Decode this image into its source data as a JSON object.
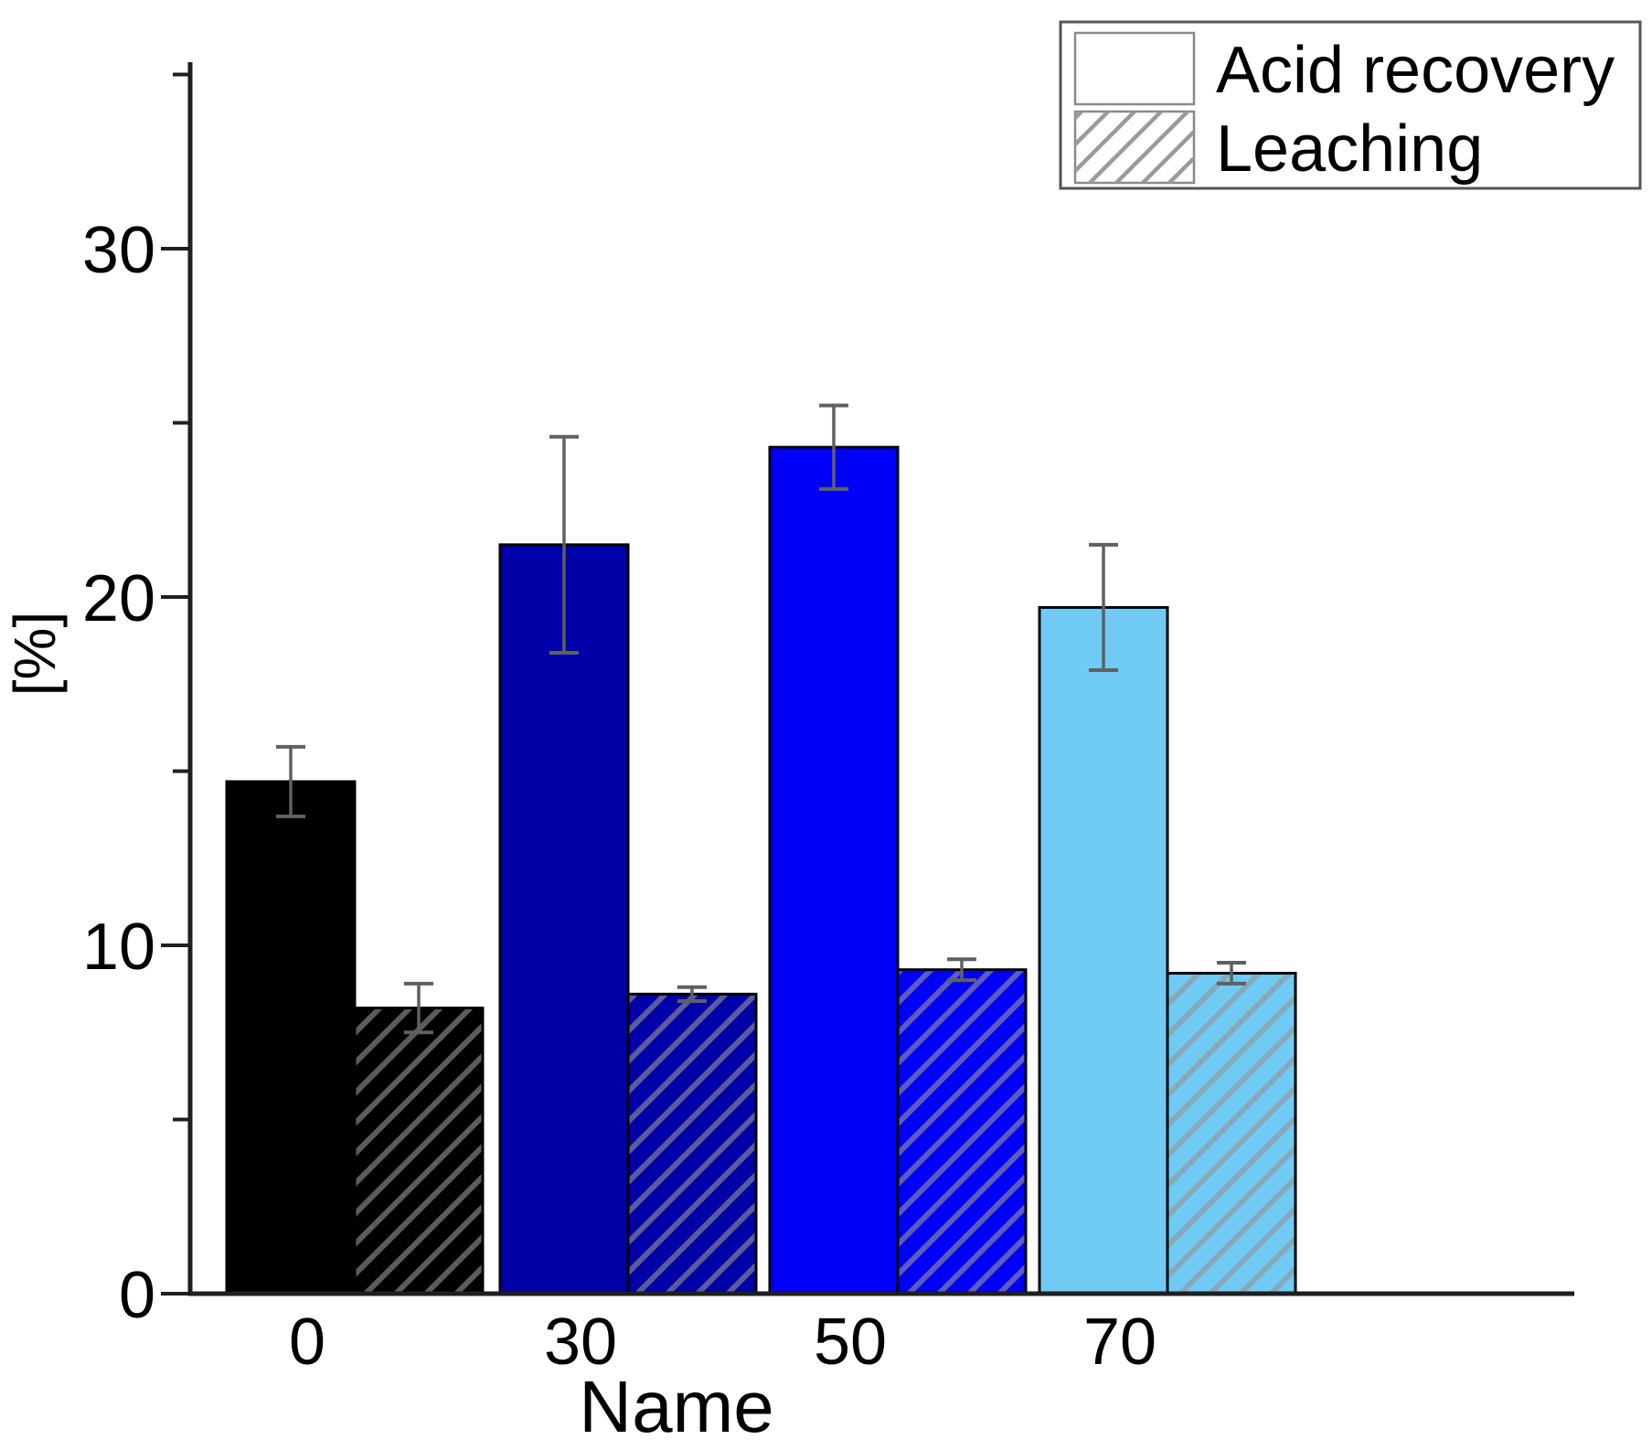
{
  "chart_data": {
    "type": "bar",
    "title": "",
    "xlabel": "Name",
    "ylabel": "[%]",
    "categories": [
      "0",
      "30",
      "50",
      "70"
    ],
    "series": [
      {
        "name": "Acid recovery",
        "style": "solid",
        "values": [
          14.7,
          21.5,
          24.3,
          19.7
        ],
        "errors": [
          1.0,
          3.1,
          1.2,
          1.8
        ]
      },
      {
        "name": "Leaching",
        "style": "hatched",
        "values": [
          8.2,
          8.6,
          9.3,
          9.2
        ],
        "errors": [
          0.7,
          0.2,
          0.3,
          0.3
        ]
      }
    ],
    "group_colors": [
      "#000000",
      "#0000A8",
      "#0000FA",
      "#70CBF4"
    ],
    "ylim": [
      0,
      35.3
    ],
    "yticks": [
      0,
      10,
      20,
      30
    ],
    "minor_yticks": [
      5,
      15,
      25,
      35
    ],
    "grid": false,
    "legend_position": "top-right",
    "colors": {
      "bar_border": "#000000",
      "error_bar": "#606060",
      "axis": "#1f1f1f",
      "hatch_on_bar": "rgba(148,148,148,0.62)",
      "hatch_on_legend": "#9a9a9a",
      "legend_border": "#555555",
      "legend_swatch_border": "#8a8a8a",
      "background": "#ffffff"
    }
  }
}
